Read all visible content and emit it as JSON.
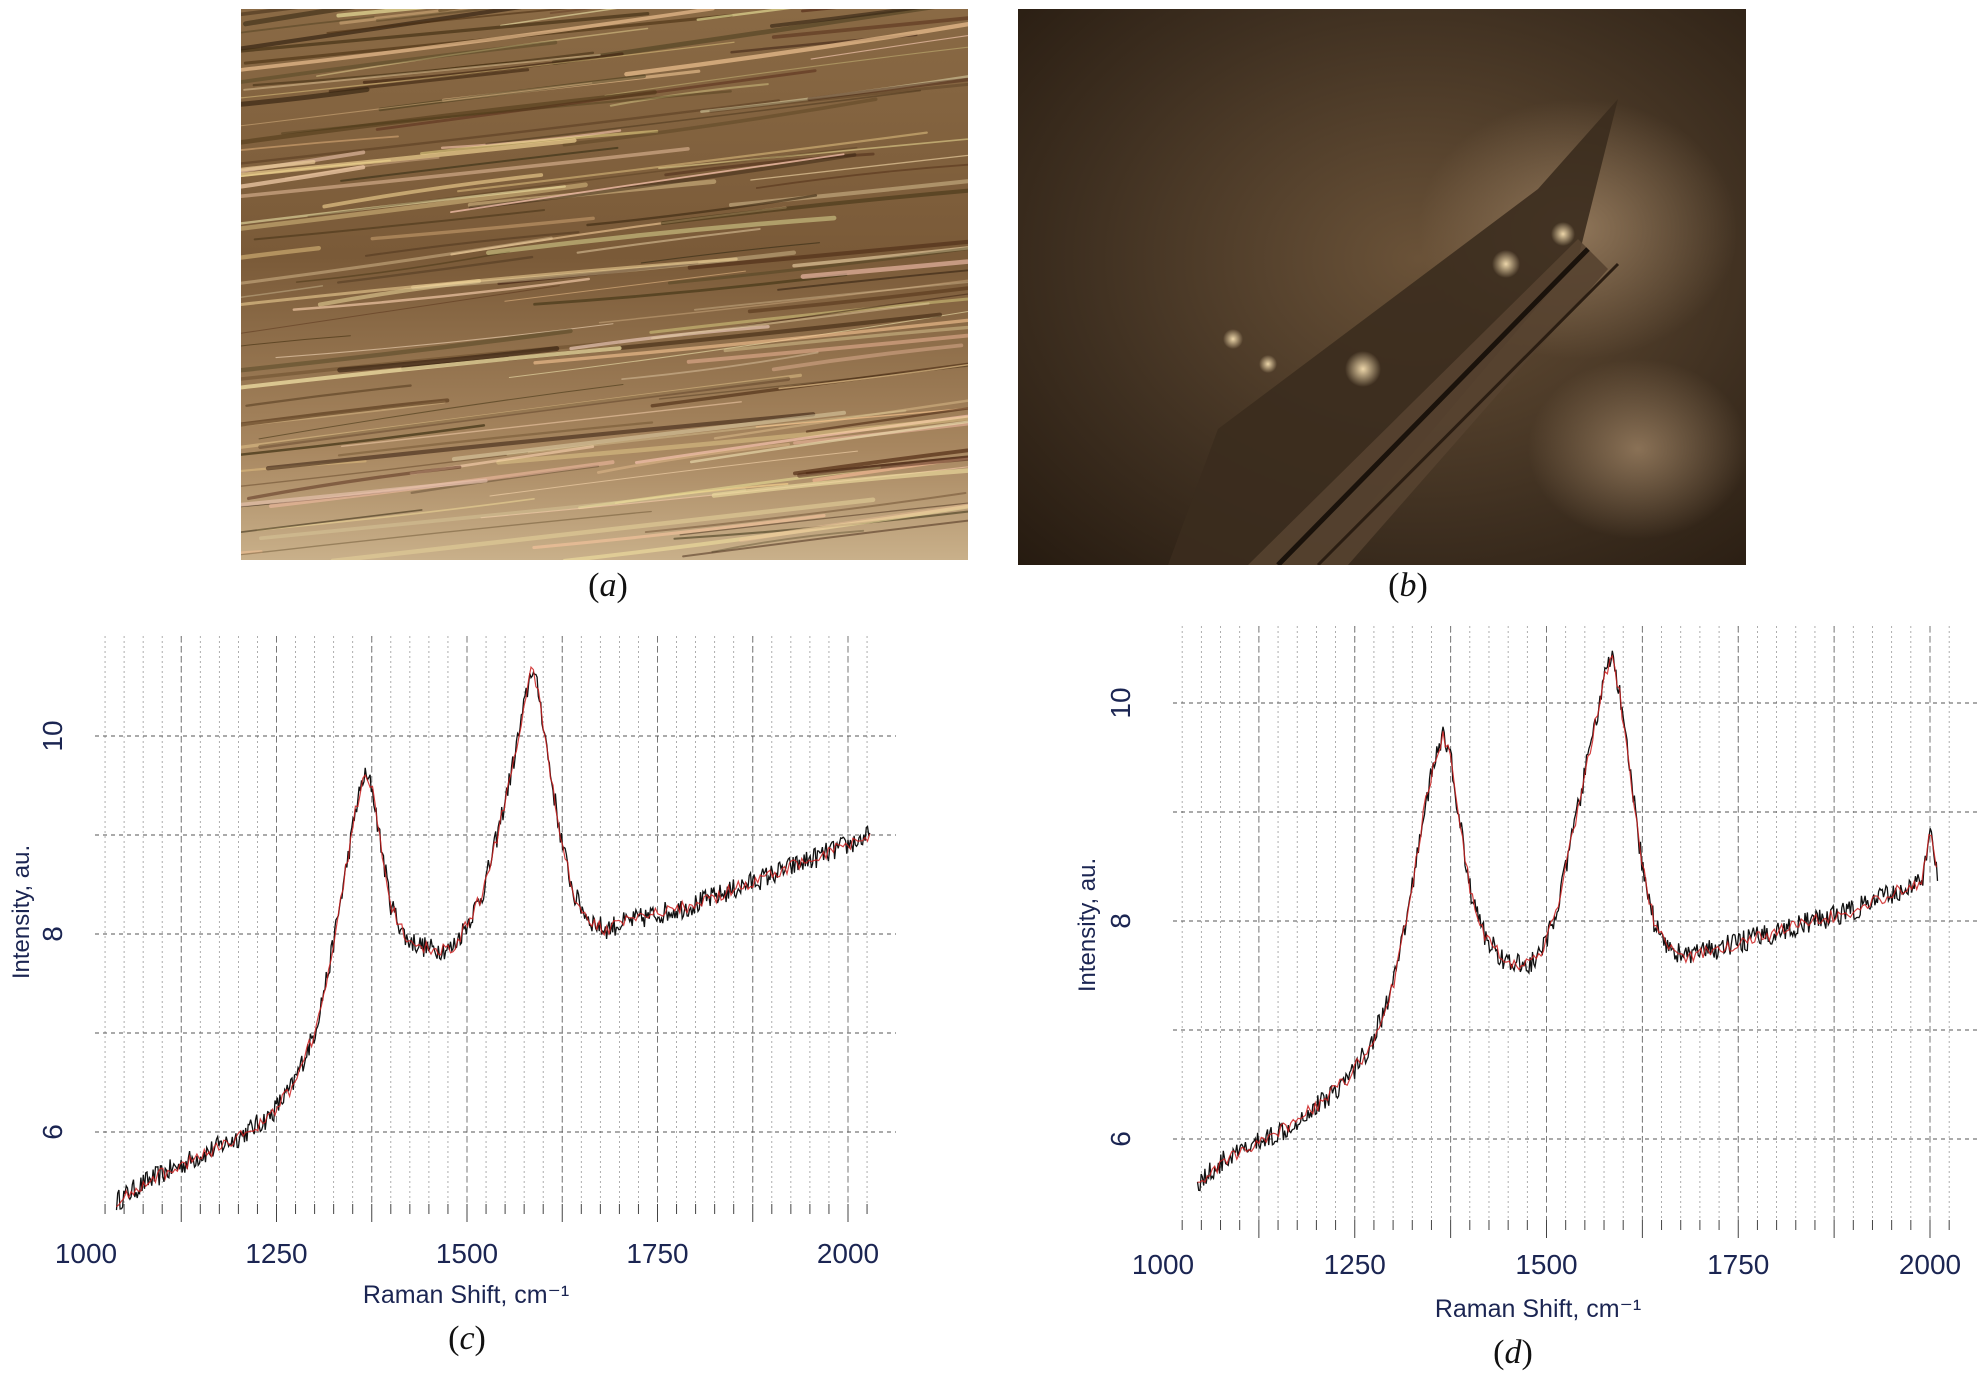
{
  "panels": {
    "a": {
      "label": "a"
    },
    "b": {
      "label": "b"
    },
    "c": {
      "label": "c"
    },
    "d": {
      "label": "d"
    }
  },
  "colors": {
    "axis_text": "#1b2552",
    "trace_black": "#111111",
    "trace_red": "#cc1f1f",
    "grid": "#9a9a9a"
  },
  "chart_data": [
    {
      "panel": "c",
      "type": "line",
      "xlabel": "Raman Shift, cm⁻¹",
      "ylabel": "Intensity, au.",
      "xticks": [
        "1000",
        "1250",
        "1500",
        "1750",
        "2000"
      ],
      "yticks": [
        "6",
        "8",
        "10"
      ],
      "xlim": [
        1000,
        2040
      ],
      "ylim": [
        5.1,
        11.0
      ],
      "grid": true,
      "series": [
        {
          "x": [
            1040,
            1080,
            1120,
            1160,
            1200,
            1240,
            1270,
            1300,
            1320,
            1340,
            1355,
            1365,
            1375,
            1385,
            1400,
            1420,
            1450,
            1480,
            1500,
            1520,
            1540,
            1560,
            1575,
            1585,
            1595,
            1610,
            1625,
            1640,
            1660,
            1680,
            1700,
            1750,
            1800,
            1850,
            1900,
            1950,
            2000,
            2030
          ],
          "y": [
            5.3,
            5.5,
            5.65,
            5.8,
            5.95,
            6.15,
            6.45,
            7.0,
            7.7,
            8.6,
            9.3,
            9.6,
            9.5,
            9.0,
            8.3,
            7.95,
            7.85,
            7.85,
            8.1,
            8.4,
            9.0,
            9.7,
            10.3,
            10.7,
            10.4,
            9.6,
            8.9,
            8.4,
            8.15,
            8.05,
            8.1,
            8.2,
            8.3,
            8.45,
            8.6,
            8.75,
            8.9,
            9.0
          ]
        }
      ]
    },
    {
      "panel": "d",
      "type": "line",
      "xlabel": "Raman Shift, cm⁻¹",
      "ylabel": "Intensity, au.",
      "xticks": [
        "1000",
        "1250",
        "1500",
        "1750",
        "2000"
      ],
      "yticks": [
        "6",
        "8",
        "10"
      ],
      "xlim": [
        1000,
        2040
      ],
      "ylim": [
        5.3,
        10.75
      ],
      "grid": true,
      "series": [
        {
          "x": [
            1045,
            1080,
            1120,
            1160,
            1200,
            1240,
            1270,
            1300,
            1320,
            1340,
            1355,
            1365,
            1375,
            1385,
            1400,
            1420,
            1450,
            1480,
            1500,
            1520,
            1540,
            1560,
            1575,
            1585,
            1595,
            1610,
            1625,
            1640,
            1660,
            1680,
            1700,
            1750,
            1800,
            1850,
            1900,
            1950,
            1990,
            2000,
            2010
          ],
          "y": [
            5.6,
            5.8,
            5.95,
            6.1,
            6.3,
            6.55,
            6.85,
            7.4,
            8.1,
            9.0,
            9.5,
            9.7,
            9.5,
            9.0,
            8.3,
            7.85,
            7.6,
            7.6,
            7.8,
            8.3,
            9.0,
            9.7,
            10.2,
            10.45,
            10.1,
            9.3,
            8.5,
            8.0,
            7.75,
            7.68,
            7.7,
            7.8,
            7.9,
            8.0,
            8.1,
            8.25,
            8.35,
            8.9,
            8.45
          ]
        }
      ]
    }
  ]
}
